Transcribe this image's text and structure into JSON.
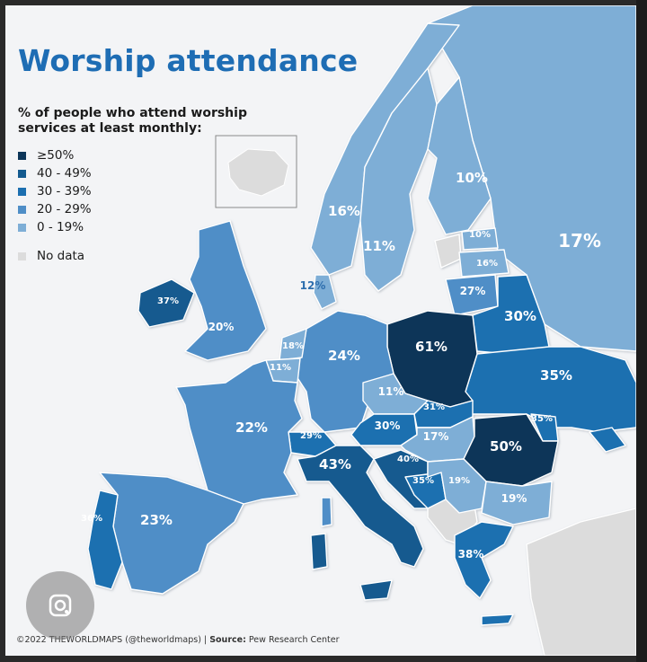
{
  "title": "Worship attendance",
  "subtitle": "% of people who attend worship services at least monthly:",
  "legend": [
    {
      "label": "≥50%",
      "color": "#0c3558"
    },
    {
      "label": "40 - 49%",
      "color": "#135a8f"
    },
    {
      "label": "30 - 39%",
      "color": "#1c6fb0"
    },
    {
      "label": "20 - 29%",
      "color": "#4f8ec7"
    },
    {
      "label": "0 - 19%",
      "color": "#7eaed6"
    }
  ],
  "no_data": {
    "label": "No data",
    "color": "#dcdcdc"
  },
  "footer": {
    "credit": "©2022 THEWORLDMAPS (@theworldmaps)",
    "source_label": "Source:",
    "source": "Pew Research Center"
  },
  "countries": [
    {
      "name": "Norway",
      "value": "16%"
    },
    {
      "name": "Finland",
      "value": "10%"
    },
    {
      "name": "Sweden",
      "value": "11%"
    },
    {
      "name": "Russia",
      "value": "17%"
    },
    {
      "name": "Estonia",
      "value": "10%"
    },
    {
      "name": "Latvia",
      "value": "16%"
    },
    {
      "name": "Denmark",
      "value": "12%"
    },
    {
      "name": "Lithuania",
      "value": "27%"
    },
    {
      "name": "Ireland",
      "value": "37%"
    },
    {
      "name": "United Kingdom",
      "value": "20%"
    },
    {
      "name": "Belarus",
      "value": "30%"
    },
    {
      "name": "Netherlands",
      "value": "18%"
    },
    {
      "name": "Germany",
      "value": "24%"
    },
    {
      "name": "Poland",
      "value": "61%"
    },
    {
      "name": "Belgium",
      "value": "11%"
    },
    {
      "name": "Czechia",
      "value": "11%"
    },
    {
      "name": "Ukraine",
      "value": "35%"
    },
    {
      "name": "Slovakia",
      "value": "31%"
    },
    {
      "name": "France",
      "value": "22%"
    },
    {
      "name": "Austria",
      "value": "30%"
    },
    {
      "name": "Hungary",
      "value": "17%"
    },
    {
      "name": "Moldova",
      "value": "35%"
    },
    {
      "name": "Switzerland",
      "value": "29%"
    },
    {
      "name": "Romania",
      "value": "50%"
    },
    {
      "name": "Italy",
      "value": "43%"
    },
    {
      "name": "Croatia",
      "value": "40%"
    },
    {
      "name": "Bosnia and Herzegovina",
      "value": "35%"
    },
    {
      "name": "Serbia",
      "value": "19%"
    },
    {
      "name": "Bulgaria",
      "value": "19%"
    },
    {
      "name": "Portugal",
      "value": "36%"
    },
    {
      "name": "Spain",
      "value": "23%"
    },
    {
      "name": "Greece",
      "value": "38%"
    }
  ]
}
